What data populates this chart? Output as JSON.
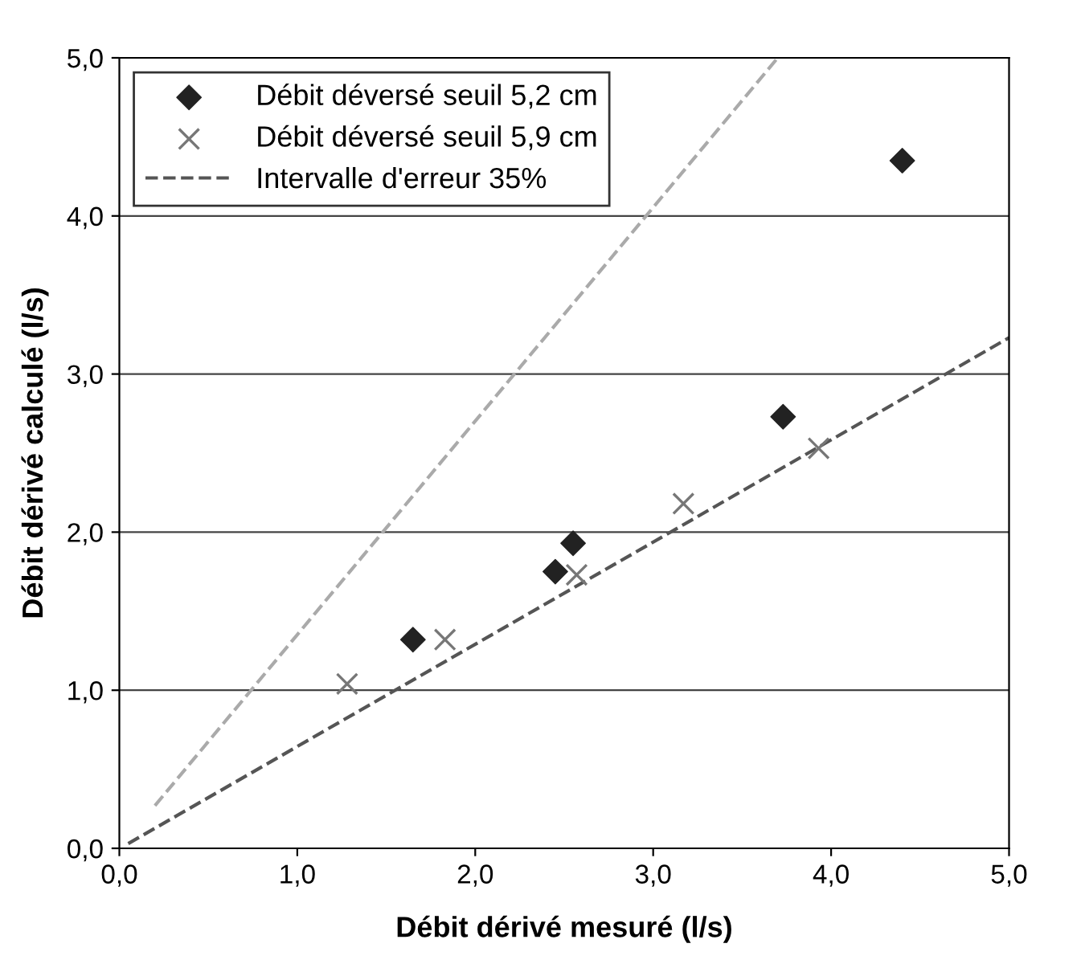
{
  "chart_data": {
    "type": "scatter",
    "xlabel": "Débit dérivé mesuré (l/s)",
    "ylabel": "Débit dérivé calculé (l/s)",
    "xlim": [
      0,
      5
    ],
    "ylim": [
      0,
      5
    ],
    "xticks": [
      {
        "value": 0,
        "label": "0,0"
      },
      {
        "value": 1,
        "label": "1,0"
      },
      {
        "value": 2,
        "label": "2,0"
      },
      {
        "value": 3,
        "label": "3,0"
      },
      {
        "value": 4,
        "label": "4,0"
      },
      {
        "value": 5,
        "label": "5,0"
      }
    ],
    "yticks": [
      {
        "value": 0,
        "label": "0,0"
      },
      {
        "value": 1,
        "label": "1,0"
      },
      {
        "value": 2,
        "label": "2,0"
      },
      {
        "value": 3,
        "label": "3,0"
      },
      {
        "value": 4,
        "label": "4,0"
      },
      {
        "value": 5,
        "label": "5,0"
      }
    ],
    "grid": "y",
    "legend": "top left",
    "series": [
      {
        "name": "Débit déversé seuil 5,2 cm",
        "marker": "diamond",
        "color": "#222222",
        "x": [
          1.65,
          2.45,
          2.55,
          3.73,
          4.4
        ],
        "values": [
          1.32,
          1.75,
          1.93,
          2.73,
          4.35
        ]
      },
      {
        "name": "Débit déversé seuil 5,9 cm",
        "marker": "cross",
        "color": "#777777",
        "x": [
          1.28,
          1.83,
          2.57,
          3.17,
          3.93
        ],
        "values": [
          1.04,
          1.32,
          1.73,
          2.18,
          2.53
        ]
      },
      {
        "name": "Intervalle d'erreur 35%",
        "type": "line",
        "marker": "none",
        "line_style": "dashed",
        "color": "#555555",
        "x": [
          0.05,
          5
        ],
        "values": [
          0.03,
          3.23
        ]
      },
      {
        "type": "line",
        "marker": "none",
        "line_style": "dashed",
        "color": "#aaaaaa",
        "x": [
          0.2,
          3.7
        ],
        "values": [
          0.27,
          5
        ]
      }
    ]
  }
}
